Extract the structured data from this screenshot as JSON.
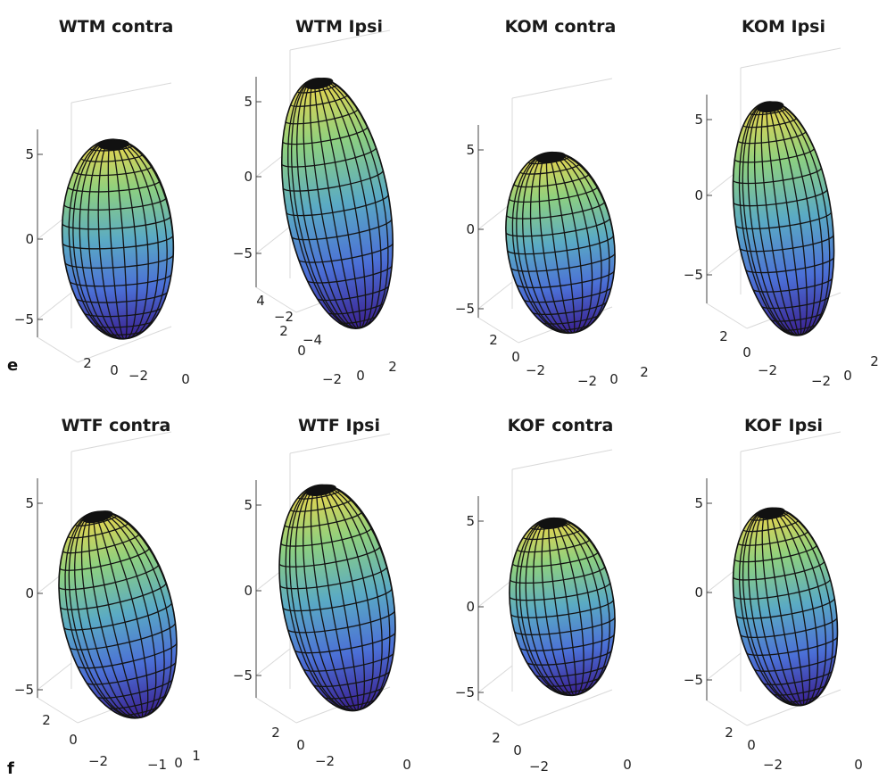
{
  "panel_labels": [
    "e",
    "f"
  ],
  "chart_data": [
    {
      "type": "ellipsoid-surface",
      "title": "WTM contra",
      "zticks": [
        "5",
        "0",
        "−5"
      ],
      "yticks": [
        "2",
        "0",
        "−2"
      ],
      "xticks": [
        "0"
      ],
      "colors": [
        "#3a1f8f",
        "#4b6fd6",
        "#5aaac4",
        "#8ed07f",
        "#eed44a"
      ]
    },
    {
      "type": "ellipsoid-surface",
      "title": "WTM Ipsi",
      "zticks": [
        "5",
        "0",
        "−5"
      ],
      "yticks": [
        "4",
        "2",
        "0",
        "−2",
        "−4"
      ],
      "xticks": [
        "−2",
        "0",
        "2"
      ],
      "colors": [
        "#3a1f8f",
        "#4b6fd6",
        "#5aaac4",
        "#8ed07f",
        "#eed44a"
      ]
    },
    {
      "type": "ellipsoid-surface",
      "title": "KOM contra",
      "zticks": [
        "5",
        "0",
        "−5"
      ],
      "yticks": [
        "2",
        "0",
        "−2"
      ],
      "xticks": [
        "−2",
        "0",
        "2"
      ],
      "colors": [
        "#3a1f8f",
        "#4b6fd6",
        "#5aaac4",
        "#8ed07f",
        "#eed44a"
      ]
    },
    {
      "type": "ellipsoid-surface",
      "title": "KOM Ipsi",
      "zticks": [
        "5",
        "0",
        "−5"
      ],
      "yticks": [
        "2",
        "0",
        "−2"
      ],
      "xticks": [
        "−2",
        "0",
        "2"
      ],
      "colors": [
        "#3a1f8f",
        "#4b6fd6",
        "#5aaac4",
        "#8ed07f",
        "#eed44a"
      ]
    },
    {
      "type": "ellipsoid-surface",
      "title": "WTF contra",
      "zticks": [
        "5",
        "0",
        "−5"
      ],
      "yticks": [
        "2",
        "0",
        "−2"
      ],
      "xticks": [
        "−1",
        "0",
        "1"
      ],
      "colors": [
        "#3a1f8f",
        "#4b6fd6",
        "#5aaac4",
        "#8ed07f",
        "#eed44a"
      ]
    },
    {
      "type": "ellipsoid-surface",
      "title": "WTF Ipsi",
      "zticks": [
        "5",
        "0",
        "−5"
      ],
      "yticks": [
        "2",
        "0",
        "−2"
      ],
      "xticks": [
        "0"
      ],
      "colors": [
        "#3a1f8f",
        "#4b6fd6",
        "#5aaac4",
        "#8ed07f",
        "#eed44a"
      ]
    },
    {
      "type": "ellipsoid-surface",
      "title": "KOF contra",
      "zticks": [
        "5",
        "0",
        "−5"
      ],
      "yticks": [
        "2",
        "0",
        "−2"
      ],
      "xticks": [
        "0"
      ],
      "colors": [
        "#3a1f8f",
        "#4b6fd6",
        "#5aaac4",
        "#8ed07f",
        "#eed44a"
      ]
    },
    {
      "type": "ellipsoid-surface",
      "title": "KOF Ipsi",
      "zticks": [
        "5",
        "0",
        "−5"
      ],
      "yticks": [
        "2",
        "0",
        "−2"
      ],
      "xticks": [
        "0"
      ],
      "colors": [
        "#3a1f8f",
        "#4b6fd6",
        "#5aaac4",
        "#8ed07f",
        "#eed44a"
      ]
    }
  ]
}
